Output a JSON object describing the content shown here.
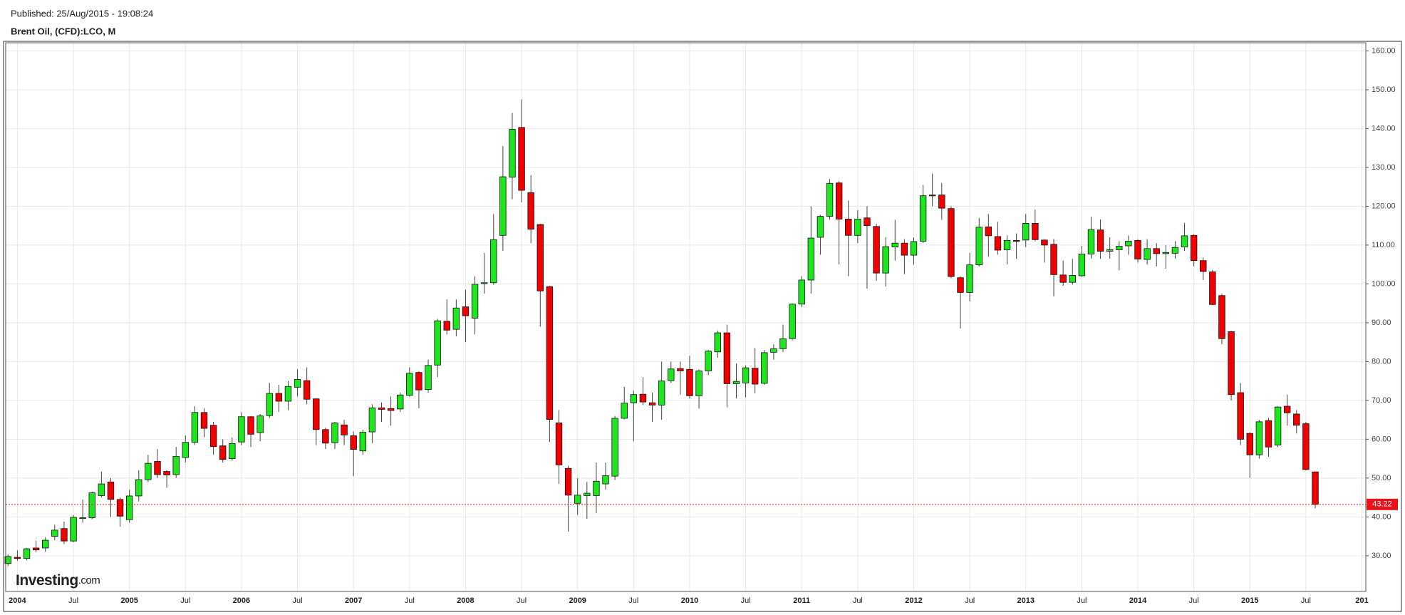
{
  "chart_data": {
    "type": "candlestick",
    "subtitle": "Published: 25/Aug/2015 - 19:08:24",
    "title": "Brent Oil, (CFD):LCO, M",
    "logo": "Investing",
    "logo_suffix": ".com",
    "x_axis_edge_label": "201",
    "categories": [
      null,
      "2004",
      null,
      null,
      null,
      null,
      null,
      "Jul",
      null,
      null,
      null,
      null,
      null,
      "2005",
      null,
      null,
      null,
      null,
      null,
      "Jul",
      null,
      null,
      null,
      null,
      null,
      "2006",
      null,
      null,
      null,
      null,
      null,
      "Jul",
      null,
      null,
      null,
      null,
      null,
      "2007",
      null,
      null,
      null,
      null,
      null,
      "Jul",
      null,
      null,
      null,
      null,
      null,
      "2008",
      null,
      null,
      null,
      null,
      null,
      "Jul",
      null,
      null,
      null,
      null,
      null,
      "2009",
      null,
      null,
      null,
      null,
      null,
      "Jul",
      null,
      null,
      null,
      null,
      null,
      "2010",
      null,
      null,
      null,
      null,
      null,
      "Jul",
      null,
      null,
      null,
      null,
      null,
      "2011",
      null,
      null,
      null,
      null,
      null,
      "Jul",
      null,
      null,
      null,
      null,
      null,
      "2012",
      null,
      null,
      null,
      null,
      null,
      "Jul",
      null,
      null,
      null,
      null,
      null,
      "2013",
      null,
      null,
      null,
      null,
      null,
      "Jul",
      null,
      null,
      null,
      null,
      null,
      "2014",
      null,
      null,
      null,
      null,
      null,
      "Jul",
      null,
      null,
      null,
      null,
      null,
      "2015",
      null,
      null,
      null,
      null,
      null,
      "Jul",
      null
    ],
    "open": [
      28.0,
      29.6,
      29.3,
      32.0,
      32.0,
      35.0,
      37.0,
      33.8,
      39.6,
      39.8,
      45.5,
      49.0,
      44.5,
      39.3,
      45.4,
      49.6,
      54.3,
      51.7,
      50.9,
      55.3,
      59.2,
      66.9,
      63.6,
      58.3,
      55.0,
      59.3,
      65.8,
      61.7,
      66.1,
      71.8,
      69.8,
      73.4,
      75.1,
      70.4,
      62.5,
      59.1,
      63.7,
      60.9,
      57.0,
      61.9,
      68.1,
      67.9,
      67.8,
      71.3,
      77.2,
      72.8,
      79.1,
      90.4,
      88.3,
      94.1,
      91.2,
      100.1,
      100.3,
      112.5,
      127.5,
      140.3,
      123.5,
      115.3,
      99.3,
      64.2,
      52.5,
      43.5,
      45.5,
      45.5,
      48.5,
      50.5,
      65.4,
      69.4,
      71.6,
      69.4,
      68.8,
      75.1,
      78.2,
      78.0,
      71.2,
      77.6,
      82.5,
      87.4,
      74.3,
      74.5,
      78.3,
      74.4,
      82.4,
      83.3,
      85.9,
      94.8,
      101.0,
      112.0,
      117.4,
      126.0,
      116.7,
      112.5,
      117.0,
      114.8,
      102.8,
      109.5,
      110.5,
      107.4,
      111.0,
      122.9,
      122.9,
      119.4,
      101.6,
      97.8,
      104.9,
      114.7,
      112.2,
      108.8,
      111.2,
      111.3,
      115.6,
      111.3,
      110.2,
      102.3,
      100.4,
      102.1,
      107.7,
      113.9,
      108.4,
      108.8,
      109.8,
      111.2,
      106.3,
      109.1,
      107.8,
      107.9,
      109.5,
      112.5,
      106.0,
      103.1,
      97.0,
      87.7,
      72.0,
      61.5,
      56.0,
      64.8,
      58.5,
      68.5,
      66.5,
      64.0,
      51.6
    ],
    "high": [
      30.3,
      31.4,
      32.0,
      33.9,
      34.8,
      38.0,
      38.8,
      40.5,
      44.5,
      46.5,
      51.7,
      50.0,
      45.0,
      47.0,
      52.0,
      56.0,
      57.5,
      52.0,
      58.0,
      61.0,
      68.5,
      68.0,
      64.5,
      60.0,
      60.5,
      67.0,
      66.0,
      66.5,
      74.5,
      74.0,
      75.0,
      78.0,
      78.5,
      70.5,
      63.0,
      64.5,
      65.0,
      62.0,
      62.5,
      69.0,
      69.5,
      71.0,
      72.0,
      78.5,
      77.5,
      80.5,
      91.0,
      96.0,
      96.0,
      98.5,
      102.0,
      108.0,
      118.0,
      135.5,
      144.0,
      147.5,
      128.0,
      115.5,
      99.5,
      67.5,
      53.2,
      50.0,
      49.0,
      54.0,
      54.0,
      66.0,
      73.5,
      72.5,
      76.0,
      72.0,
      80.0,
      80.0,
      80.0,
      81.5,
      78.0,
      83.0,
      88.0,
      89.5,
      79.5,
      79.0,
      83.5,
      83.0,
      84.5,
      89.5,
      95.0,
      102.0,
      120.0,
      117.8,
      127.0,
      126.5,
      121.5,
      119.0,
      120.0,
      115.5,
      112.0,
      116.5,
      111.5,
      112.0,
      125.5,
      128.4,
      126.0,
      120.0,
      102.0,
      108.0,
      117.0,
      118.0,
      116.0,
      112.5,
      113.0,
      118.0,
      119.2,
      111.5,
      111.5,
      106.0,
      106.5,
      109.8,
      117.3,
      116.6,
      112.0,
      111.0,
      112.5,
      111.5,
      111.5,
      110.5,
      110.0,
      111.0,
      115.7,
      112.8,
      106.8,
      103.6,
      97.5,
      88.0,
      74.5,
      61.8,
      65.0,
      65.5,
      68.5,
      71.5,
      67.5,
      64.5,
      51.7
    ],
    "low": [
      27.3,
      28.7,
      28.8,
      30.9,
      31.0,
      34.0,
      33.0,
      33.5,
      38.5,
      39.4,
      45.0,
      40.0,
      37.5,
      38.5,
      44.0,
      49.0,
      50.0,
      47.5,
      50.0,
      54.0,
      58.5,
      60.5,
      56.0,
      54.0,
      54.5,
      58.5,
      58.0,
      59.5,
      65.5,
      67.0,
      67.5,
      71.0,
      69.0,
      58.5,
      57.5,
      57.5,
      58.5,
      50.5,
      56.0,
      59.0,
      64.5,
      63.5,
      67.0,
      71.0,
      68.0,
      72.0,
      76.0,
      87.0,
      86.5,
      85.0,
      87.0,
      97.5,
      99.8,
      108.5,
      121.8,
      121.0,
      110.5,
      89.0,
      59.3,
      48.5,
      36.2,
      40.5,
      39.5,
      41.0,
      47.0,
      49.5,
      65.1,
      59.5,
      68.8,
      64.5,
      65.0,
      74.5,
      71.5,
      70.5,
      67.9,
      76.5,
      81.0,
      68.2,
      70.5,
      70.8,
      71.8,
      74.0,
      80.5,
      82.5,
      85.5,
      94.0,
      97.5,
      107.5,
      116.5,
      105.0,
      102.0,
      110.5,
      98.8,
      100.8,
      99.3,
      106.0,
      102.5,
      105.0,
      110.5,
      120.0,
      116.5,
      101.5,
      88.5,
      95.5,
      104.5,
      107.0,
      107.5,
      105.0,
      106.5,
      109.5,
      111.0,
      105.5,
      96.8,
      99.5,
      99.8,
      101.8,
      106.5,
      106.5,
      106.5,
      103.5,
      107.5,
      105.5,
      105.0,
      104.5,
      103.9,
      106.5,
      108.5,
      104.5,
      101.0,
      94.5,
      84.5,
      70.0,
      58.5,
      50.0,
      55.0,
      55.5,
      58.0,
      63.5,
      61.5,
      52.0,
      42.2
    ],
    "close": [
      29.8,
      29.3,
      31.8,
      31.5,
      34.0,
      36.6,
      33.8,
      39.9,
      39.8,
      46.2,
      48.5,
      44.5,
      40.2,
      45.4,
      49.6,
      53.8,
      50.9,
      50.8,
      55.6,
      59.2,
      66.9,
      62.8,
      58.1,
      54.8,
      58.9,
      65.8,
      61.3,
      66.0,
      71.8,
      69.8,
      73.6,
      75.4,
      70.3,
      62.5,
      59.0,
      64.2,
      61.1,
      57.4,
      61.8,
      68.1,
      67.7,
      67.4,
      71.4,
      77.0,
      72.7,
      79.0,
      90.5,
      88.1,
      93.8,
      91.8,
      99.9,
      100.3,
      111.4,
      127.6,
      139.8,
      124.1,
      114.1,
      98.2,
      65.1,
      53.4,
      45.6,
      45.6,
      46.1,
      49.2,
      50.6,
      65.4,
      69.3,
      71.5,
      69.6,
      68.8,
      75.0,
      78.1,
      77.6,
      71.2,
      77.6,
      82.7,
      87.4,
      74.3,
      74.9,
      78.4,
      74.2,
      82.3,
      83.3,
      85.9,
      94.8,
      101.0,
      111.8,
      117.4,
      125.9,
      116.7,
      112.5,
      116.7,
      115.0,
      102.8,
      109.6,
      110.5,
      107.4,
      110.9,
      122.7,
      122.7,
      119.5,
      101.9,
      97.8,
      104.9,
      114.6,
      112.4,
      108.7,
      111.2,
      111.1,
      115.6,
      111.4,
      110.0,
      102.4,
      100.4,
      102.2,
      107.7,
      114.0,
      108.4,
      108.8,
      109.7,
      111.0,
      106.4,
      109.1,
      107.8,
      108.1,
      109.4,
      112.4,
      106.0,
      103.2,
      94.7,
      85.9,
      71.5,
      60.0,
      56.0,
      64.5,
      58.0,
      68.3,
      66.8,
      63.6,
      52.2,
      43.22
    ],
    "up_color": "#1ee61e",
    "down_color": "#f20000",
    "last_price": 43.22,
    "last_price_color": "#e8121b",
    "ylim": [
      20.8,
      162.1
    ],
    "yticks": [
      {
        "value": 30,
        "label": "30.00"
      },
      {
        "value": 40,
        "label": "40.00"
      },
      {
        "value": 50,
        "label": "50.00"
      },
      {
        "value": 60,
        "label": "60.00"
      },
      {
        "value": 70,
        "label": "70.00"
      },
      {
        "value": 80,
        "label": "80.00"
      },
      {
        "value": 90,
        "label": "90.00"
      },
      {
        "value": 100,
        "label": "100.00"
      },
      {
        "value": 110,
        "label": "110.00"
      },
      {
        "value": 120,
        "label": "120.00"
      },
      {
        "value": 130,
        "label": "130.00"
      },
      {
        "value": 140,
        "label": "140.00"
      },
      {
        "value": 150,
        "label": "150.00"
      },
      {
        "value": 160,
        "label": "160.00"
      }
    ],
    "grid": true
  }
}
